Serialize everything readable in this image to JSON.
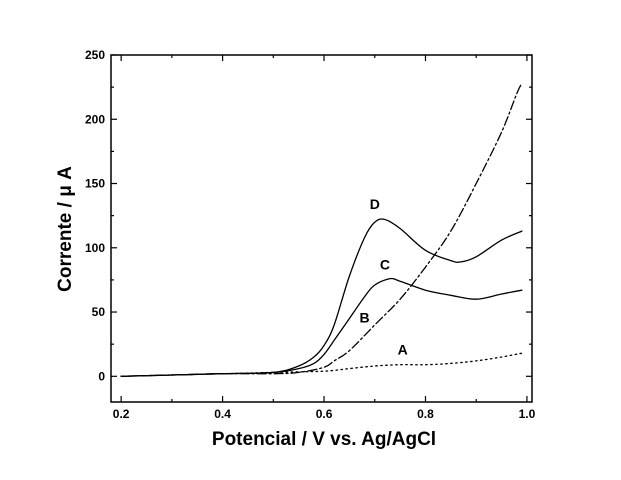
{
  "chart_data": {
    "type": "line",
    "xlabel": "Potencial / V vs. Ag/AgCl",
    "ylabel": "Corrente / μ A",
    "xlim": [
      0.18,
      1.01
    ],
    "ylim": [
      -20,
      250
    ],
    "x_ticks": [
      0.2,
      0.4,
      0.6,
      0.8,
      1.0
    ],
    "x_tick_labels": [
      "0.2",
      "0.4",
      "0.6",
      "0.8",
      "1.0"
    ],
    "y_ticks": [
      0,
      50,
      100,
      150,
      200,
      250
    ],
    "y_tick_labels": [
      "0",
      "50",
      "100",
      "150",
      "200",
      "250"
    ],
    "grid": false,
    "series": [
      {
        "name": "A",
        "style": "dotted",
        "x": [
          0.2,
          0.3,
          0.4,
          0.5,
          0.6,
          0.65,
          0.7,
          0.75,
          0.8,
          0.85,
          0.9,
          0.95,
          0.99
        ],
        "y": [
          0,
          1,
          2,
          3,
          4,
          6,
          8,
          9,
          9,
          10,
          12,
          15,
          18
        ]
      },
      {
        "name": "B",
        "style": "dash-dot",
        "x": [
          0.2,
          0.3,
          0.4,
          0.5,
          0.55,
          0.6,
          0.62,
          0.65,
          0.7,
          0.75,
          0.8,
          0.85,
          0.9,
          0.95,
          0.98,
          0.99
        ],
        "y": [
          0,
          1,
          2,
          2,
          3,
          7,
          12,
          20,
          40,
          60,
          85,
          113,
          150,
          190,
          220,
          228
        ]
      },
      {
        "name": "C",
        "style": "solid",
        "x": [
          0.2,
          0.3,
          0.4,
          0.5,
          0.55,
          0.58,
          0.6,
          0.62,
          0.65,
          0.68,
          0.7,
          0.73,
          0.75,
          0.8,
          0.85,
          0.9,
          0.95,
          0.99
        ],
        "y": [
          0,
          1,
          2,
          3,
          6,
          10,
          17,
          28,
          45,
          62,
          71,
          76,
          74,
          67,
          63,
          60,
          64,
          67
        ]
      },
      {
        "name": "D",
        "style": "solid",
        "x": [
          0.2,
          0.3,
          0.4,
          0.5,
          0.55,
          0.58,
          0.6,
          0.62,
          0.65,
          0.68,
          0.7,
          0.72,
          0.75,
          0.8,
          0.85,
          0.87,
          0.9,
          0.95,
          0.99
        ],
        "y": [
          0,
          1,
          2,
          3,
          8,
          15,
          24,
          40,
          78,
          108,
          120,
          122,
          115,
          98,
          90,
          89,
          93,
          106,
          113
        ]
      }
    ],
    "curve_labels": [
      {
        "text": "A",
        "x": 0.755,
        "y": 17
      },
      {
        "text": "B",
        "x": 0.68,
        "y": 42
      },
      {
        "text": "C",
        "x": 0.72,
        "y": 83
      },
      {
        "text": "D",
        "x": 0.7,
        "y": 130
      }
    ]
  }
}
